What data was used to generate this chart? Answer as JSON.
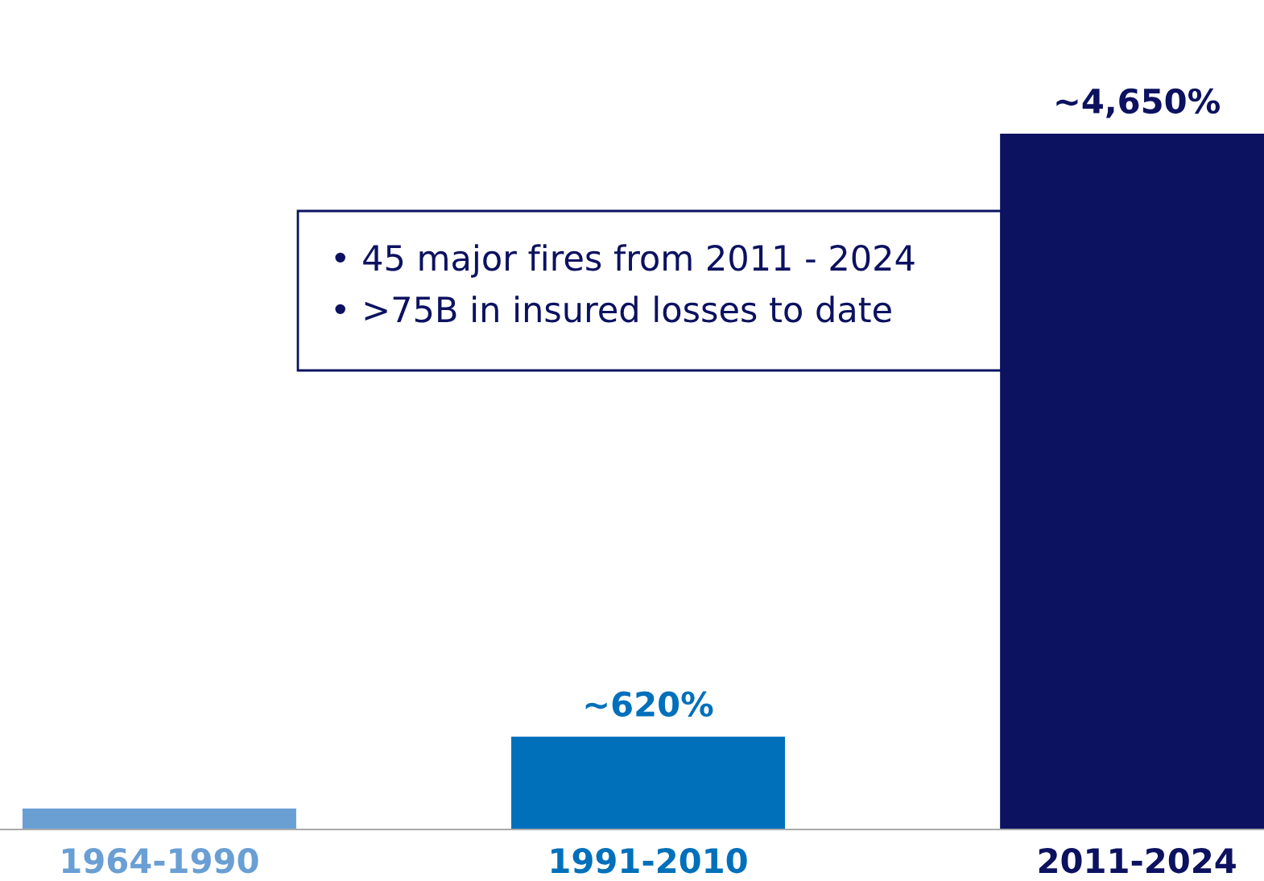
{
  "chart_data": {
    "type": "bar",
    "categories": [
      "1964-1990",
      "1991-2010",
      "2011-2024"
    ],
    "values": [
      140,
      620,
      4650
    ],
    "colors": [
      "#6a9fd4",
      "#0070bb",
      "#0c1260"
    ],
    "value_labels": [
      null,
      "~620%",
      "~4,650%"
    ],
    "annotations": [
      "• 45 major fires from 2011 - 2024",
      "• >75B in insured losses to date"
    ],
    "grid": false,
    "legend": false
  }
}
